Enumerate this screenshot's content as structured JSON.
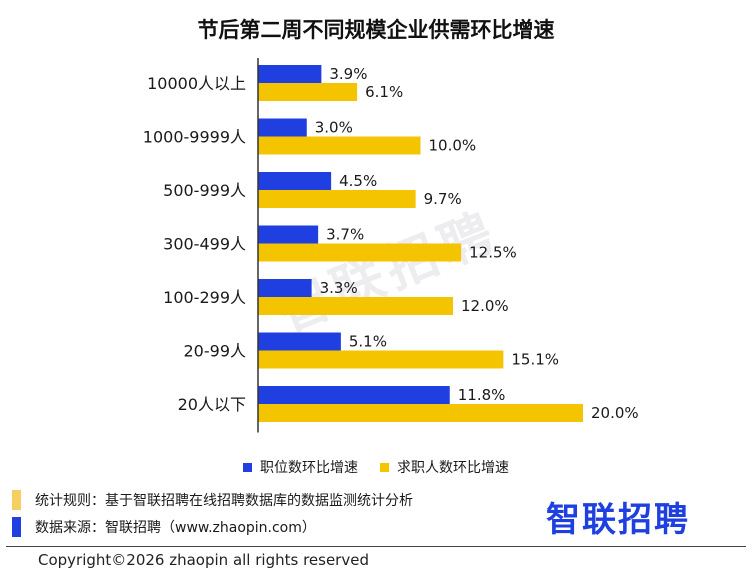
{
  "chart_data": {
    "type": "bar",
    "orientation": "horizontal",
    "title": "节后第二周不同规模企业供需环比增速",
    "categories": [
      "10000人以上",
      "1000-9999人",
      "500-999人",
      "300-499人",
      "100-299人",
      "20-99人",
      "20人以下"
    ],
    "series": [
      {
        "name": "职位数环比增速",
        "color": "#1f3fe0",
        "values": [
          3.9,
          3.0,
          4.5,
          3.7,
          3.3,
          5.1,
          11.8
        ],
        "labels": [
          "3.9%",
          "3.0%",
          "4.5%",
          "3.7%",
          "3.3%",
          "5.1%",
          "11.8%"
        ]
      },
      {
        "name": "求职人数环比增速",
        "color": "#f5c400",
        "values": [
          6.1,
          10.0,
          9.7,
          12.5,
          12.0,
          15.1,
          20.0
        ],
        "labels": [
          "6.1%",
          "10.0%",
          "9.7%",
          "12.5%",
          "12.0%",
          "15.1%",
          "20.0%"
        ]
      }
    ],
    "xlim": [
      0,
      20
    ],
    "legend_position": "bottom",
    "grid": false
  },
  "notes": {
    "rule": "统计规则：基于智联招聘在线招聘数据库的数据监测统计分析",
    "rule_color": "#f5d061",
    "source": "数据来源：智联招聘（www.zhaopin.com）",
    "source_color": "#1f3fe0"
  },
  "logo": "智联招聘",
  "watermark": "智联招聘",
  "copyright": "Copyright©2026 zhaopin all rights reserved"
}
